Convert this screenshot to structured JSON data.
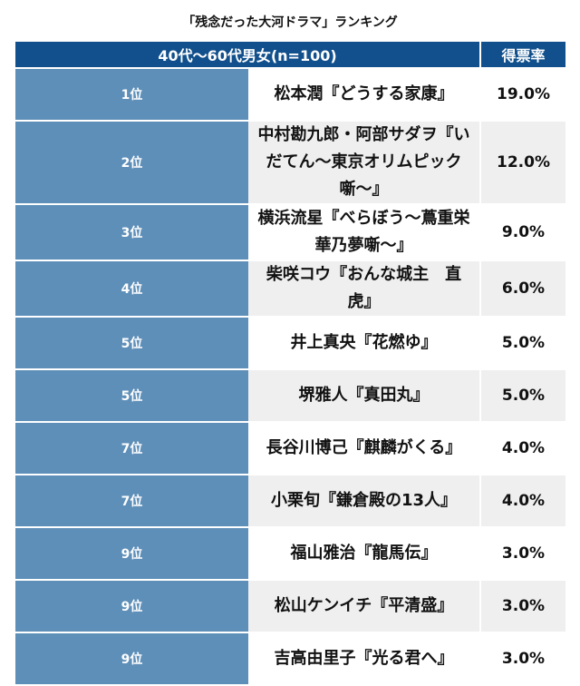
{
  "title": "「残念だった大河ドラマ」ランキング",
  "header": {
    "group": "40代〜60代男女(n=100)",
    "rate": "得票率"
  },
  "rows": [
    {
      "rank": "1位",
      "name": "松本潤『どうする家康』",
      "rate": "19.0%"
    },
    {
      "rank": "2位",
      "name": "中村勘九郎・阿部サダヲ『いだてん〜東京オリムピック噺〜』",
      "rate": "12.0%"
    },
    {
      "rank": "3位",
      "name": "横浜流星『べらぼう〜蔦重栄華乃夢噺〜』",
      "rate": "9.0%"
    },
    {
      "rank": "4位",
      "name": "柴咲コウ『おんな城主　直虎』",
      "rate": "6.0%"
    },
    {
      "rank": "5位",
      "name": "井上真央『花燃ゆ』",
      "rate": "5.0%"
    },
    {
      "rank": "5位",
      "name": "堺雅人『真田丸』",
      "rate": "5.0%"
    },
    {
      "rank": "7位",
      "name": "長谷川博己『麒麟がくる』",
      "rate": "4.0%"
    },
    {
      "rank": "7位",
      "name": "小栗旬『鎌倉殿の13人』",
      "rate": "4.0%"
    },
    {
      "rank": "9位",
      "name": "福山雅治『龍馬伝』",
      "rate": "3.0%"
    },
    {
      "rank": "9位",
      "name": "松山ケンイチ『平清盛』",
      "rate": "3.0%"
    },
    {
      "rank": "9位",
      "name": "吉高由里子『光る君へ』",
      "rate": "3.0%"
    }
  ]
}
